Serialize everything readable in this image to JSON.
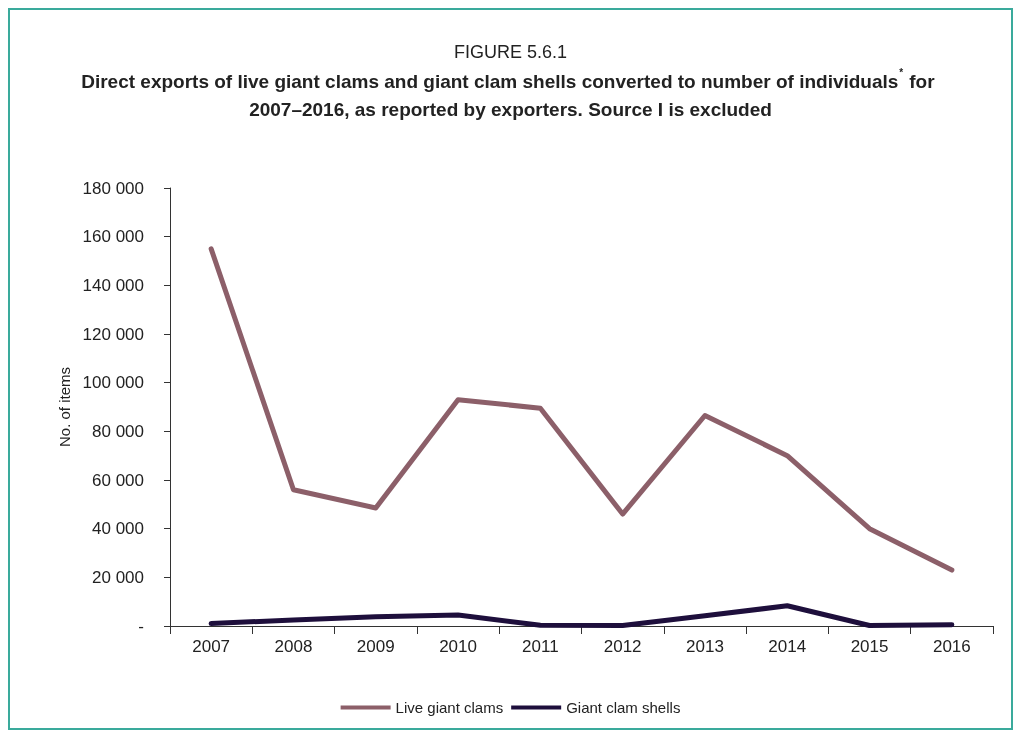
{
  "chart_data": {
    "type": "line",
    "title": "FIGURE 5.6.1",
    "subtitle": "Direct exports of live giant clams and giant clam shells converted to number of individuals$^{*}$ for 2007–2016, as reported by exporters. Source I is excluded",
    "ylabel": "No. of items",
    "categories": [
      "2007",
      "2008",
      "2009",
      "2010",
      "2011",
      "2012",
      "2013",
      "2014",
      "2015",
      "2016"
    ],
    "series": [
      {
        "name": "Live giant clams",
        "color": "#8c5f69",
        "values": [
          155000,
          56000,
          48500,
          93000,
          89500,
          46000,
          86500,
          70000,
          40000,
          23000
        ]
      },
      {
        "name": "Giant clam shells",
        "color": "#1e0f3c",
        "values": [
          1000,
          2500,
          3800,
          4500,
          300,
          200,
          4200,
          8300,
          200,
          500
        ]
      }
    ],
    "ylim": [
      0,
      180000
    ],
    "yticks": [
      {
        "value": 0,
        "label": "-"
      },
      {
        "value": 20000,
        "label": "20 000"
      },
      {
        "value": 40000,
        "label": "40 000"
      },
      {
        "value": 60000,
        "label": "60 000"
      },
      {
        "value": 80000,
        "label": "80 000"
      },
      {
        "value": 100000,
        "label": "100 000"
      },
      {
        "value": 120000,
        "label": "120 000"
      },
      {
        "value": 140000,
        "label": "140 000"
      },
      {
        "value": 160000,
        "label": "160 000"
      },
      {
        "value": 180000,
        "label": "180 000"
      }
    ],
    "grid": false,
    "legend": "bottom",
    "marker": "none",
    "line_style": "solid"
  }
}
